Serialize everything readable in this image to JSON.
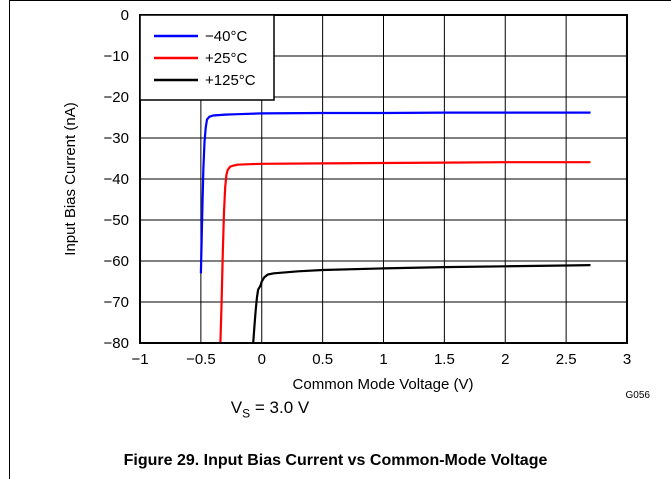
{
  "chart_data": {
    "type": "line",
    "xlabel": "Common Mode Voltage (V)",
    "ylabel": "Input Bias Current (nA)",
    "xlim": [
      -1,
      3
    ],
    "ylim": [
      -80,
      0
    ],
    "x_ticks": [
      "−1",
      "−0.5",
      "0",
      "0.5",
      "1",
      "1.5",
      "2",
      "2.5",
      "3"
    ],
    "x_tick_values": [
      -1,
      -0.5,
      0,
      0.5,
      1,
      1.5,
      2,
      2.5,
      3
    ],
    "y_ticks": [
      "0",
      "−10",
      "−20",
      "−30",
      "−40",
      "−50",
      "−60",
      "−70",
      "−80"
    ],
    "y_tick_values": [
      0,
      -10,
      -20,
      -30,
      -40,
      -50,
      -60,
      -70,
      -80
    ],
    "grid": true,
    "legend_position": "top-left",
    "series": [
      {
        "name": "−40°C",
        "color": "#0000ff",
        "x": [
          -0.5,
          -0.49,
          -0.48,
          -0.47,
          -0.46,
          -0.45,
          -0.43,
          -0.4,
          -0.3,
          -0.2,
          0,
          0.5,
          1,
          1.5,
          2,
          2.5,
          2.7
        ],
        "y": [
          -63,
          -50,
          -38,
          -31,
          -27.5,
          -25.5,
          -24.8,
          -24.5,
          -24.3,
          -24.2,
          -24.0,
          -23.9,
          -23.9,
          -23.8,
          -23.8,
          -23.8,
          -23.8
        ]
      },
      {
        "name": "+25°C",
        "color": "#ff0000",
        "x": [
          -0.34,
          -0.33,
          -0.32,
          -0.31,
          -0.3,
          -0.29,
          -0.28,
          -0.26,
          -0.23,
          -0.2,
          -0.1,
          0,
          0.5,
          1,
          1.5,
          2,
          2.5,
          2.7
        ],
        "y": [
          -80,
          -70,
          -58,
          -48,
          -42,
          -39,
          -37.8,
          -37.0,
          -36.7,
          -36.5,
          -36.4,
          -36.3,
          -36.2,
          -36.1,
          -36.0,
          -35.9,
          -35.9,
          -35.9
        ]
      },
      {
        "name": "+125°C",
        "color": "#000000",
        "x": [
          -0.07,
          -0.06,
          -0.05,
          -0.04,
          -0.03,
          -0.02,
          -0.01,
          0,
          0.02,
          0.05,
          0.1,
          0.3,
          0.5,
          1,
          1.5,
          2,
          2.5,
          2.7
        ],
        "y": [
          -80,
          -76,
          -72,
          -69,
          -67,
          -66.5,
          -66,
          -65,
          -64,
          -63.3,
          -63,
          -62.5,
          -62.2,
          -61.8,
          -61.5,
          -61.3,
          -61.1,
          -61.0
        ]
      }
    ]
  },
  "chart_id": "G056",
  "condition": {
    "symbol": "V",
    "subscript": "S",
    "value": " = 3.0 V"
  },
  "caption": "Figure 29. Input Bias Current vs Common-Mode Voltage"
}
